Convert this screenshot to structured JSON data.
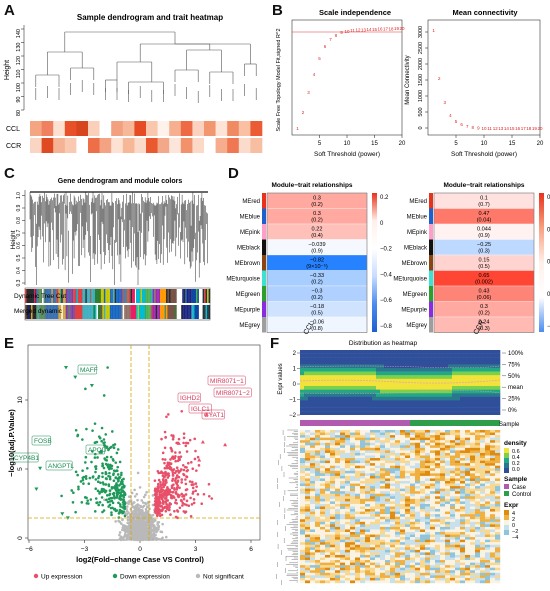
{
  "panels": {
    "A": {
      "label": "A",
      "title": "Sample dendrogram and trait heatmap",
      "ylabel": "Height",
      "yticks": [
        "80",
        "90",
        "100",
        "110",
        "120",
        "130",
        "140"
      ],
      "rows": [
        "CCL",
        "CCR"
      ]
    },
    "B": {
      "label": "B",
      "left_title": "Scale independence",
      "left_ylabel": "Scale Free Topology Model Fit,signed R^2",
      "left_xlabel": "Soft Threshold (power)",
      "left_xticks": [
        "5",
        "10",
        "15",
        "20"
      ],
      "right_title": "Mean connectivity",
      "right_ylabel": "Mean Connectivity",
      "right_xlabel": "Soft Threshold (power)",
      "right_xticks": [
        "5",
        "10",
        "15",
        "20"
      ],
      "right_yticks": [
        "0",
        "500",
        "1000",
        "1500",
        "2000",
        "2500",
        "3000"
      ]
    },
    "C": {
      "label": "C",
      "title": "Gene dendrogram and module colors",
      "ylabel": "Height",
      "yticks": [
        "0.3",
        "0.4",
        "0.5",
        "0.6",
        "0.7",
        "0.8",
        "0.9",
        "1.0"
      ],
      "bar1": "Dynamic Tree Cut",
      "bar2": "Merged dynamic"
    },
    "D": {
      "label": "D",
      "left_title": "Module−trait relationships",
      "right_title": "Module−trait relationships",
      "modules": [
        "MEred",
        "MEblue",
        "MEpink",
        "MEblack",
        "MEbrown",
        "MEturquoise",
        "MEgreen",
        "MEpurple",
        "MEgrey"
      ],
      "left_col": "CCL",
      "right_col": "CCR",
      "left_cells": [
        {
          "v": "0.3",
          "p": "(0.2)"
        },
        {
          "v": "0.3",
          "p": "(0.2)"
        },
        {
          "v": "0.22",
          "p": "(0.4)"
        },
        {
          "v": "−0.039",
          "p": "(0.9)"
        },
        {
          "v": "−0.82",
          "p": "(9×10⁻⁵)"
        },
        {
          "v": "−0.33",
          "p": "(0.2)"
        },
        {
          "v": "−0.3",
          "p": "(0.2)"
        },
        {
          "v": "−0.18",
          "p": "(0.5)"
        },
        {
          "v": "−0.06",
          "p": "(0.8)"
        }
      ],
      "right_cells": [
        {
          "v": "0.1",
          "p": "(0.7)"
        },
        {
          "v": "0.47",
          "p": "(0.04)"
        },
        {
          "v": "0.044",
          "p": "(0.9)"
        },
        {
          "v": "−0.25",
          "p": "(0.3)"
        },
        {
          "v": "0.15",
          "p": "(0.5)"
        },
        {
          "v": "0.65",
          "p": "(0.002)"
        },
        {
          "v": "0.43",
          "p": "(0.06)"
        },
        {
          "v": "0.3",
          "p": "(0.2)"
        },
        {
          "v": "0.24",
          "p": "(0.3)"
        }
      ],
      "left_scale": [
        "0.2",
        "0",
        "−0.2",
        "−0.4",
        "−0.6",
        "−0.8"
      ],
      "right_scale": [
        "0.6",
        "0.4",
        "0.2",
        "0",
        "−0.2"
      ]
    },
    "E": {
      "label": "E",
      "ylabel": "−log10(adj.P.Value)",
      "xlabel": "log2(Fold−change Case VS Control)",
      "xticks": [
        "−6",
        "−3",
        "0",
        "3",
        "6"
      ],
      "yticks": [
        "0",
        "5",
        "10"
      ],
      "genes_down": [
        "MAFF",
        "FOSB",
        "CYP4B1",
        "APOD",
        "ANGPTL"
      ],
      "genes_up": [
        "MIR8071−1",
        "MIR8071−2",
        "IGHD2",
        "IGLC1",
        "CYAT1"
      ],
      "legend": [
        "Up expression",
        "Down expression",
        "Not significant"
      ]
    },
    "F": {
      "label": "F",
      "title": "Distribution as heatmap",
      "ylabel": "Expr values",
      "yticks": [
        "2",
        "1",
        "0",
        "−1",
        "−2"
      ],
      "legend_right": [
        "100%",
        "75%",
        "50%",
        "mean",
        "25%",
        "0%"
      ],
      "sample_label": "Sample",
      "density_title": "density",
      "density_ticks": [
        "0.6",
        "0.4",
        "0.2",
        "0.0"
      ],
      "sample_title": "Sample",
      "sample_items": [
        "Case",
        "Control"
      ],
      "expr_title": "Expr",
      "expr_ticks": [
        "4",
        "2",
        "0",
        "−2",
        "−4"
      ]
    }
  },
  "colors": {
    "up": "#e8506a",
    "down": "#1f9a5a",
    "ns": "#b9b9b9",
    "threshold": "#d9a300"
  }
}
